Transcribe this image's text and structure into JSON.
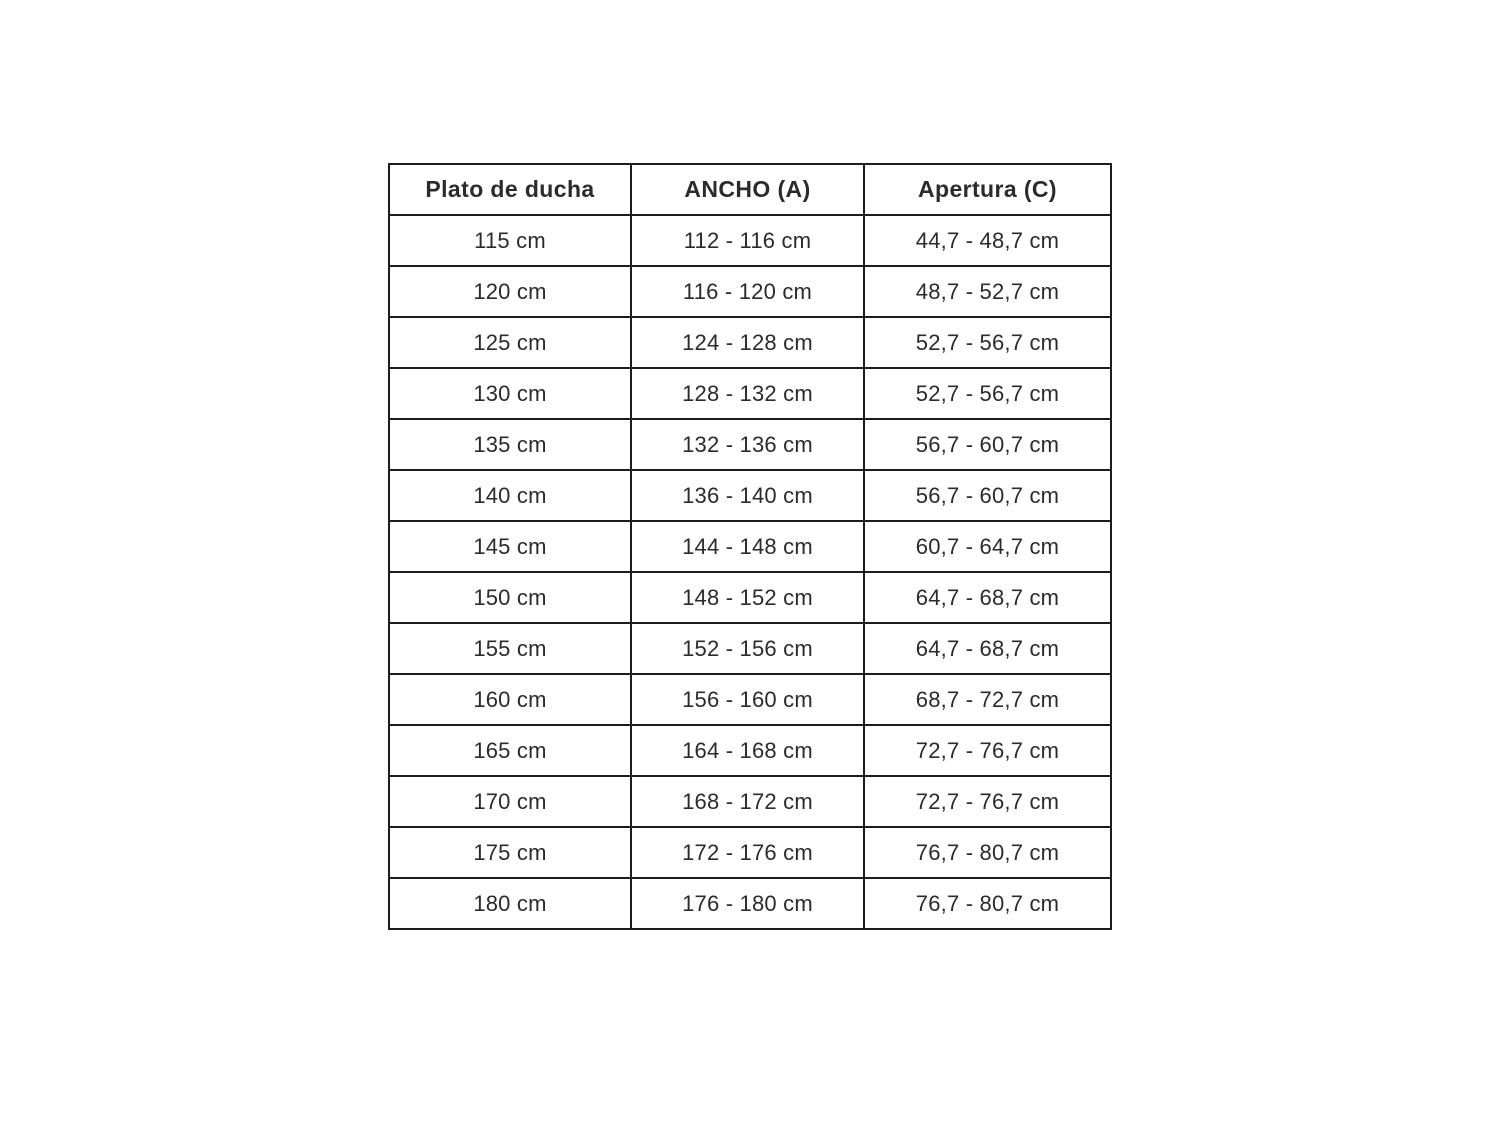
{
  "colors": {
    "background": "#ffffff",
    "border": "#1c1c1c",
    "text": "#2b2b2b"
  },
  "chart_data": {
    "type": "table",
    "title": "",
    "columns": [
      {
        "label": "Plato de ducha"
      },
      {
        "label": "ANCHO (A)"
      },
      {
        "label": "Apertura (C)"
      }
    ],
    "rows": [
      [
        "115 cm",
        "112 - 116 cm",
        "44,7 - 48,7 cm"
      ],
      [
        "120 cm",
        "116 - 120 cm",
        "48,7 - 52,7 cm"
      ],
      [
        "125 cm",
        "124 - 128 cm",
        "52,7 - 56,7 cm"
      ],
      [
        "130 cm",
        "128 - 132 cm",
        "52,7 - 56,7 cm"
      ],
      [
        "135 cm",
        "132 - 136 cm",
        "56,7 - 60,7 cm"
      ],
      [
        "140 cm",
        "136 - 140 cm",
        "56,7 - 60,7 cm"
      ],
      [
        "145 cm",
        "144 - 148 cm",
        "60,7 - 64,7 cm"
      ],
      [
        "150 cm",
        "148 - 152 cm",
        "64,7 - 68,7 cm"
      ],
      [
        "155 cm",
        "152 - 156 cm",
        "64,7 - 68,7 cm"
      ],
      [
        "160 cm",
        "156 - 160 cm",
        "68,7 - 72,7 cm"
      ],
      [
        "165 cm",
        "164 - 168 cm",
        "72,7 - 76,7 cm"
      ],
      [
        "170 cm",
        "168 - 172 cm",
        "72,7 - 76,7 cm"
      ],
      [
        "175 cm",
        "172 - 176 cm",
        "76,7 - 80,7 cm"
      ],
      [
        "180 cm",
        "176 - 180 cm",
        "76,7 - 80,7 cm"
      ]
    ]
  }
}
